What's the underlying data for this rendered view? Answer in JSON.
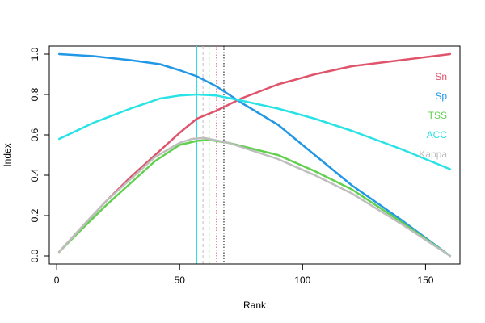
{
  "chart_data": {
    "type": "line",
    "xlabel": "Rank",
    "ylabel": "Index",
    "xlim": [
      -3,
      164
    ],
    "ylim": [
      -0.04,
      1.04
    ],
    "x_ticks": [
      0,
      50,
      100,
      150
    ],
    "x_tick_labels": [
      "0",
      "50",
      "100",
      "150"
    ],
    "y_ticks": [
      0.0,
      0.2,
      0.4,
      0.6,
      0.8,
      1.0
    ],
    "y_tick_labels": [
      "0.0",
      "0.2",
      "0.4",
      "0.6",
      "0.8",
      "1.0"
    ],
    "grid": false,
    "legend_position": "right",
    "series": [
      {
        "name": "Sn",
        "color": "#DF536B",
        "points": [
          [
            1,
            0.02
          ],
          [
            10,
            0.14
          ],
          [
            20,
            0.27
          ],
          [
            30,
            0.39
          ],
          [
            40,
            0.5
          ],
          [
            50,
            0.61
          ],
          [
            57,
            0.68
          ],
          [
            65,
            0.72
          ],
          [
            75,
            0.78
          ],
          [
            90,
            0.85
          ],
          [
            105,
            0.9
          ],
          [
            120,
            0.94
          ],
          [
            140,
            0.97
          ],
          [
            160,
            1.0
          ]
        ]
      },
      {
        "name": "Sp",
        "color": "#2297E6",
        "points": [
          [
            1,
            1.0
          ],
          [
            15,
            0.99
          ],
          [
            30,
            0.97
          ],
          [
            42,
            0.95
          ],
          [
            50,
            0.92
          ],
          [
            57,
            0.89
          ],
          [
            65,
            0.84
          ],
          [
            75,
            0.76
          ],
          [
            90,
            0.65
          ],
          [
            105,
            0.5
          ],
          [
            120,
            0.35
          ],
          [
            140,
            0.18
          ],
          [
            160,
            0.0
          ]
        ]
      },
      {
        "name": "TSS",
        "color": "#61D04F",
        "points": [
          [
            1,
            0.02
          ],
          [
            10,
            0.13
          ],
          [
            20,
            0.25
          ],
          [
            30,
            0.36
          ],
          [
            40,
            0.47
          ],
          [
            50,
            0.55
          ],
          [
            57,
            0.57
          ],
          [
            62,
            0.575
          ],
          [
            70,
            0.56
          ],
          [
            80,
            0.53
          ],
          [
            90,
            0.5
          ],
          [
            105,
            0.42
          ],
          [
            120,
            0.33
          ],
          [
            140,
            0.17
          ],
          [
            160,
            0.0
          ]
        ]
      },
      {
        "name": "ACC",
        "color": "#28E2E5",
        "points": [
          [
            1,
            0.58
          ],
          [
            15,
            0.66
          ],
          [
            30,
            0.73
          ],
          [
            42,
            0.78
          ],
          [
            50,
            0.795
          ],
          [
            57,
            0.8
          ],
          [
            65,
            0.795
          ],
          [
            75,
            0.77
          ],
          [
            90,
            0.73
          ],
          [
            105,
            0.68
          ],
          [
            120,
            0.62
          ],
          [
            140,
            0.53
          ],
          [
            160,
            0.43
          ]
        ]
      },
      {
        "name": "Kappa",
        "color": "#BEBEBE",
        "points": [
          [
            1,
            0.02
          ],
          [
            10,
            0.14
          ],
          [
            20,
            0.27
          ],
          [
            30,
            0.38
          ],
          [
            40,
            0.49
          ],
          [
            50,
            0.56
          ],
          [
            55,
            0.58
          ],
          [
            60,
            0.585
          ],
          [
            70,
            0.56
          ],
          [
            80,
            0.52
          ],
          [
            90,
            0.48
          ],
          [
            105,
            0.4
          ],
          [
            120,
            0.31
          ],
          [
            140,
            0.16
          ],
          [
            160,
            0.0
          ]
        ]
      }
    ],
    "vlines": [
      {
        "x": 57,
        "color": "#28E2E5",
        "style": "solid"
      },
      {
        "x": 59.5,
        "color": "#BEBEBE",
        "style": "dashed"
      },
      {
        "x": 62,
        "color": "#61D04F",
        "style": "dashed"
      },
      {
        "x": 65,
        "color": "#DF536B",
        "style": "dotted"
      },
      {
        "x": 68,
        "color": "#000000",
        "style": "dotted"
      }
    ]
  }
}
